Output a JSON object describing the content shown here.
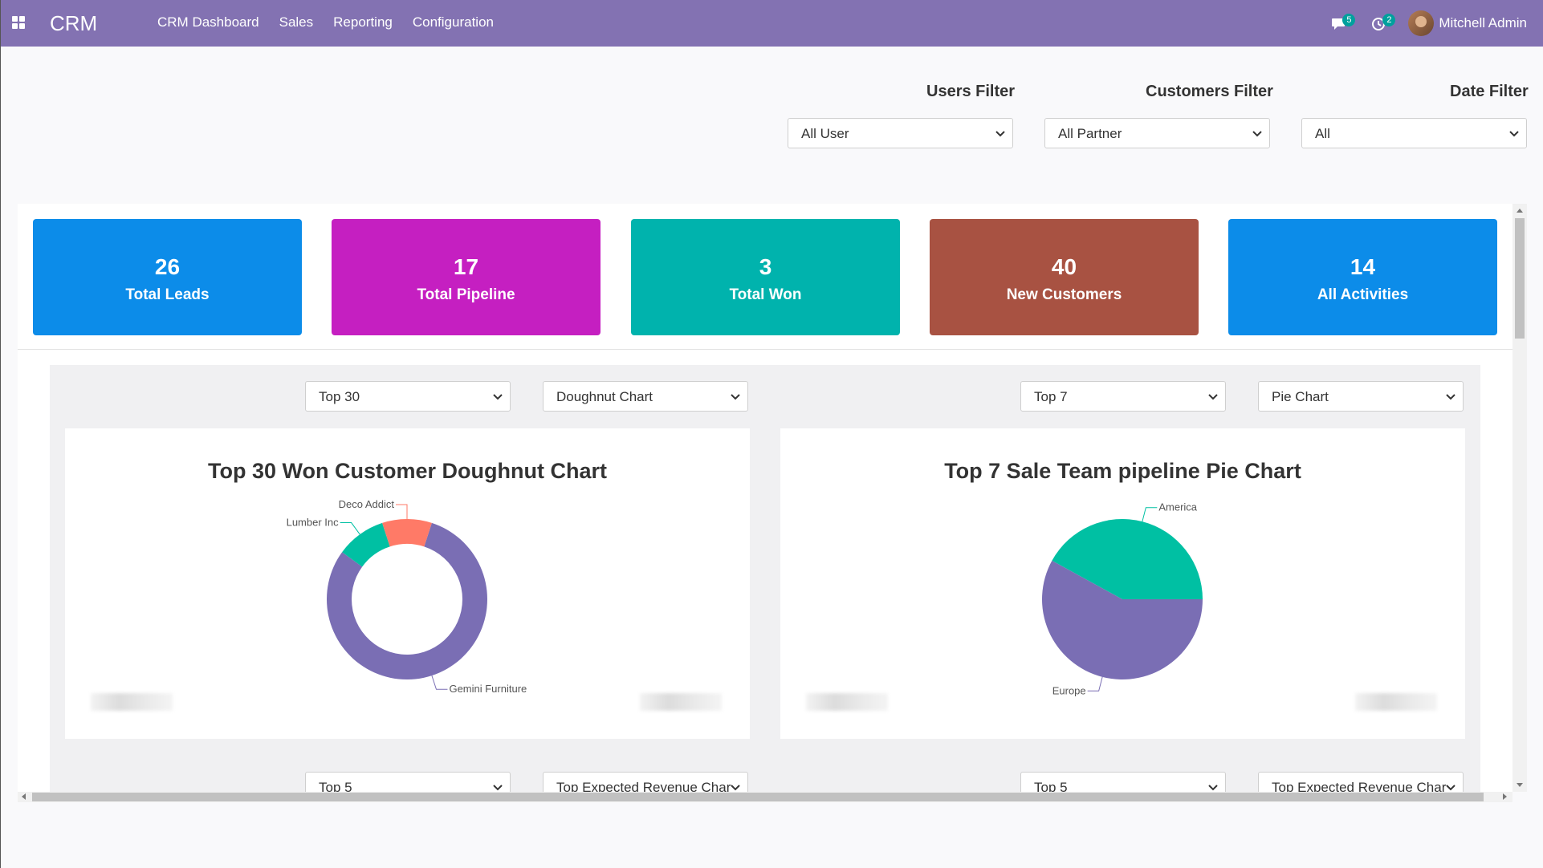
{
  "navbar": {
    "brand": "CRM",
    "menu": [
      "CRM Dashboard",
      "Sales",
      "Reporting",
      "Configuration"
    ],
    "messages_count": "5",
    "activities_count": "2",
    "user_name": "Mitchell Admin"
  },
  "filters": {
    "users": {
      "label": "Users Filter",
      "value": "All User"
    },
    "customers": {
      "label": "Customers Filter",
      "value": "All Partner"
    },
    "date": {
      "label": "Date Filter",
      "value": "All"
    }
  },
  "cards": [
    {
      "value": "26",
      "label": "Total Leads",
      "color": "#0c8ce9"
    },
    {
      "value": "17",
      "label": "Total Pipeline",
      "color": "#c51fc1"
    },
    {
      "value": "3",
      "label": "Total Won",
      "color": "#00b3ad"
    },
    {
      "value": "40",
      "label": "New Customers",
      "color": "#a85242"
    },
    {
      "value": "14",
      "label": "All Activities",
      "color": "#0c8ce9"
    }
  ],
  "chart_controls": {
    "left": {
      "top": "Top 30",
      "type": "Doughnut Chart"
    },
    "right": {
      "top": "Top 7",
      "type": "Pie Chart"
    },
    "bottom_left": {
      "top": "Top 5",
      "type": "Top Expected Revenue Char"
    },
    "bottom_right": {
      "top": "Top 5",
      "type": "Top Expected Revenue Char"
    }
  },
  "chart_data": [
    {
      "type": "pie",
      "variant": "doughnut",
      "title": "Top 30 Won Customer Doughnut Chart",
      "categories": [
        "Gemini Furniture",
        "Lumber Inc",
        "Deco Addict"
      ],
      "values": [
        0.8,
        0.1,
        0.1
      ],
      "colors": [
        "#7a6eb4",
        "#00c0a3",
        "#ff7a67"
      ]
    },
    {
      "type": "pie",
      "title": "Top 7 Sale Team pipeline Pie Chart",
      "categories": [
        "America",
        "Europe"
      ],
      "values": [
        0.42,
        0.58
      ],
      "colors": [
        "#00c0a3",
        "#7a6eb4"
      ]
    }
  ]
}
